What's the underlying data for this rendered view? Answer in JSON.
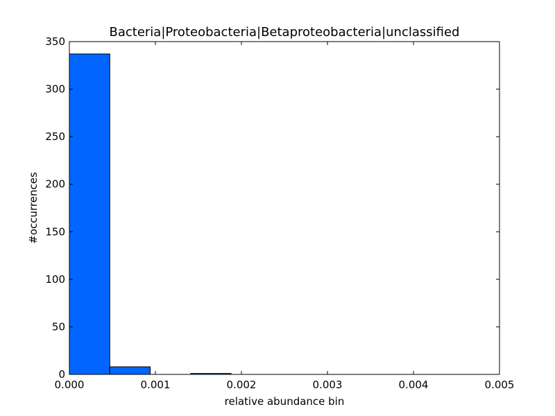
{
  "chart_data": {
    "type": "bar",
    "title": "Bacteria|Proteobacteria|Betaproteobacteria|unclassified",
    "xlabel": "relative abundance bin",
    "ylabel": "#occurrences",
    "xlim": [
      0.0,
      0.005
    ],
    "ylim": [
      0,
      350
    ],
    "x_ticks": [
      "0.000",
      "0.001",
      "0.002",
      "0.003",
      "0.004",
      "0.005"
    ],
    "y_ticks": [
      "0",
      "50",
      "100",
      "150",
      "200",
      "250",
      "300",
      "350"
    ],
    "bins": [
      {
        "start": 0.0,
        "end": 0.00047,
        "count": 337
      },
      {
        "start": 0.00047,
        "end": 0.00094,
        "count": 8
      },
      {
        "start": 0.00094,
        "end": 0.00141,
        "count": 0
      },
      {
        "start": 0.00141,
        "end": 0.00188,
        "count": 1
      },
      {
        "start": 0.00188,
        "end": 0.00235,
        "count": 0
      },
      {
        "start": 0.00235,
        "end": 0.00282,
        "count": 0
      },
      {
        "start": 0.00282,
        "end": 0.00329,
        "count": 0
      },
      {
        "start": 0.00329,
        "end": 0.00376,
        "count": 0
      },
      {
        "start": 0.00376,
        "end": 0.00423,
        "count": 0
      },
      {
        "start": 0.00423,
        "end": 0.0047,
        "count": 0
      }
    ],
    "grid": false,
    "bar_color": "#0066ff",
    "edge_color": "#000000"
  }
}
